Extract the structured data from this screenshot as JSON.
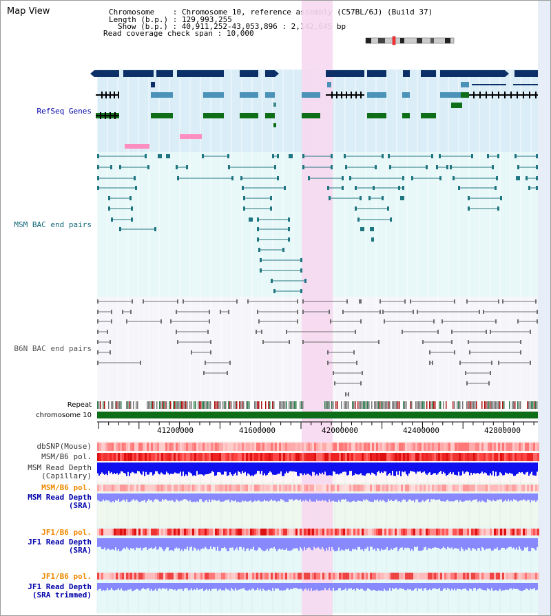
{
  "title": "Map View",
  "info": {
    "chromosome_key": "Chromosome",
    "chromosome_val": "Chromosome 10, reference assembly (C57BL/6J) (Build 37)",
    "length_key": "Length (b.p.)",
    "length_val": "129,993,255",
    "show_key": "Show (b.p.)",
    "show_val": "40,911,252-43,053,896 : 2,142,645 bp",
    "span_key": "Read coverage check span",
    "span_val": "10,000"
  },
  "tracks": {
    "refseq": "RefSeq Genes",
    "msm_bac": "MSM BAC end pairs",
    "b6n_bac": "B6N BAC end pairs",
    "repeat": "Repeat",
    "chromosome": "chromosome 10",
    "dbsnp": "dbSNP(Mouse)",
    "msm_b6_pol_1": "MSM/B6 pol.",
    "msm_depth_cap_1": "MSM Read Depth",
    "msm_depth_cap_2": "(Capillary)",
    "msm_b6_pol_2": "MSM/B6 pol.",
    "msm_depth_sra_1": "MSM Read Depth",
    "msm_depth_sra_2": "(SRA)",
    "jf1_b6_pol_1": "JF1/B6 pol.",
    "jf1_depth_sra_1": "JF1 Read Depth",
    "jf1_depth_sra_2": "(SRA)",
    "jf1_b6_pol_2": "JF1/B6 pol.",
    "jf1_depth_trim_1": "JF1 Read Depth",
    "jf1_depth_trim_2": "(SRA trimmed)"
  },
  "axis_ticks": [
    "41200000",
    "41600000",
    "42000000",
    "42400000",
    "42800000"
  ],
  "colors": {
    "refseq_bg": "#dbeef8",
    "msm_bg": "#e8f8f8",
    "b6n_bg": "#f6f6fa",
    "highlight": "#f7d8f0",
    "gene_dark": "#0b2f66",
    "gene_mid": "#4a92b8",
    "gene_green": "#0e6e18",
    "pink": "#ff8ec0",
    "msm_line": "#1f7580",
    "b6n_line": "#6e6e6e",
    "chrom_green": "#0e6e18",
    "depth_blue": "#1010ee",
    "depth_light": "#8888ff",
    "label_blue": "#0000aa",
    "label_orange": "#ee8800",
    "label_teal": "#116677"
  }
}
